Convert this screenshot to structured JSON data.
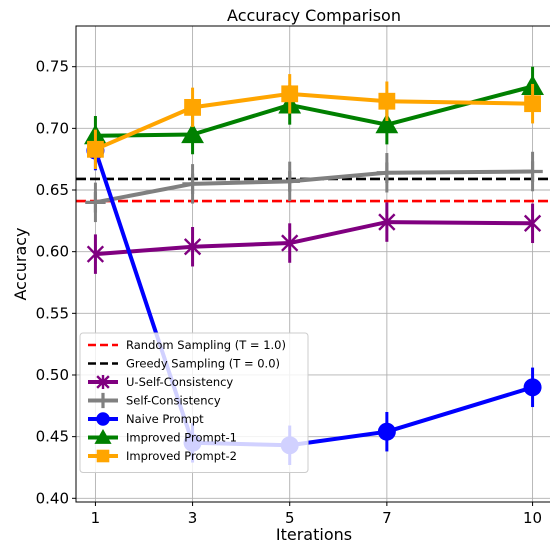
{
  "chart_data": {
    "type": "line",
    "title": "Accuracy Comparison",
    "xlabel": "Iterations",
    "ylabel": "Accuracy",
    "x": [
      1,
      3,
      5,
      7,
      10
    ],
    "x_ticks": [
      "1",
      "3",
      "5",
      "7",
      "10"
    ],
    "ylim": [
      0.397,
      0.783
    ],
    "y_ticks": [
      "0.40",
      "0.45",
      "0.50",
      "0.55",
      "0.60",
      "0.65",
      "0.70",
      "0.75"
    ],
    "grid": true,
    "legend_position": "lower-left",
    "hlines": [
      {
        "name": "Random Sampling (T = 1.0)",
        "value": 0.641,
        "color": "#ff0000"
      },
      {
        "name": "Greedy Sampling (T = 0.0)",
        "value": 0.659,
        "color": "#000000"
      }
    ],
    "series": [
      {
        "name": "U-Self-Consistency",
        "values": [
          0.598,
          0.604,
          0.607,
          0.624,
          0.623
        ],
        "errors": [
          0.016,
          0.016,
          0.016,
          0.016,
          0.016
        ],
        "color": "#800080",
        "marker": "x"
      },
      {
        "name": "Self-Consistency",
        "values": [
          0.64,
          0.655,
          0.657,
          0.664,
          0.665
        ],
        "errors": [
          0.016,
          0.016,
          0.016,
          0.016,
          0.016
        ],
        "color": "#808080",
        "marker": "plus"
      },
      {
        "name": "Naive Prompt",
        "values": [
          0.682,
          0.445,
          0.443,
          0.454,
          0.49
        ],
        "errors": [
          0.016,
          0.016,
          0.016,
          0.016,
          0.016
        ],
        "color": "#0000ff",
        "marker": "circle"
      },
      {
        "name": "Improved Prompt-1",
        "values": [
          0.694,
          0.695,
          0.719,
          0.703,
          0.734
        ],
        "errors": [
          0.016,
          0.016,
          0.016,
          0.016,
          0.016
        ],
        "color": "#008000",
        "marker": "triangle"
      },
      {
        "name": "Improved Prompt-2",
        "values": [
          0.683,
          0.717,
          0.728,
          0.722,
          0.72
        ],
        "errors": [
          0.016,
          0.016,
          0.016,
          0.016,
          0.016
        ],
        "color": "#ffa500",
        "marker": "square"
      }
    ]
  }
}
